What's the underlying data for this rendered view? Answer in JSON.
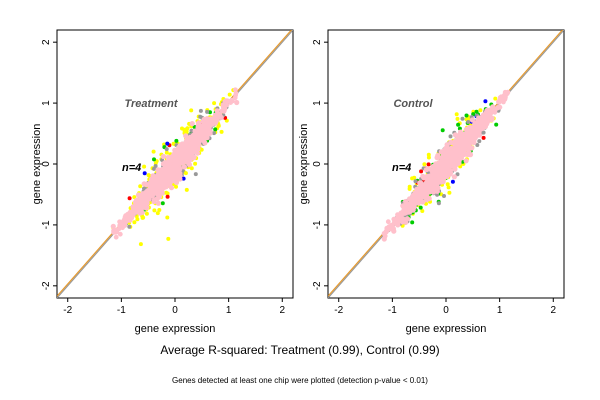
{
  "chart_data": [
    {
      "type": "scatter",
      "title": "Treatment",
      "annotation": "n=4",
      "xlabel": "gene expression",
      "ylabel": "gene expression",
      "xlim": [
        -2.2,
        2.2
      ],
      "ylim": [
        -2.2,
        2.2
      ],
      "xticks": [
        "-2",
        "-1",
        "0",
        "1",
        "2"
      ],
      "yticks": [
        "-2",
        "-1",
        "0",
        "1",
        "2"
      ],
      "tick_values": [
        -2,
        -1,
        0,
        1,
        2
      ],
      "reference_lines": [
        {
          "kind": "identity",
          "color": "#999999"
        },
        {
          "kind": "fit",
          "color": "#e69a2e"
        }
      ],
      "point_colors": [
        "#ffff00",
        "#00cc00",
        "#999999",
        "#ff0000",
        "#0000ff",
        "#ffc0cb"
      ],
      "x_range": [
        -1.15,
        1.15
      ],
      "r_squared": 0.99
    },
    {
      "type": "scatter",
      "title": "Control",
      "annotation": "n=4",
      "xlabel": "gene expression",
      "ylabel": "gene expression",
      "xlim": [
        -2.2,
        2.2
      ],
      "ylim": [
        -2.2,
        2.2
      ],
      "xticks": [
        "-2",
        "-1",
        "0",
        "1",
        "2"
      ],
      "yticks": [
        "-2",
        "-1",
        "0",
        "1",
        "2"
      ],
      "tick_values": [
        -2,
        -1,
        0,
        1,
        2
      ],
      "reference_lines": [
        {
          "kind": "identity",
          "color": "#999999"
        },
        {
          "kind": "fit",
          "color": "#e69a2e"
        }
      ],
      "point_colors": [
        "#ffff00",
        "#00cc00",
        "#999999",
        "#ff0000",
        "#0000ff",
        "#ffc0cb"
      ],
      "x_range": [
        -1.15,
        1.15
      ],
      "r_squared": 0.99
    }
  ],
  "captions": {
    "main": "Average R-squared: Treatment (0.99), Control (0.99)",
    "sub": "Genes detected at least one chip were plotted (detection p-value < 0.01)"
  }
}
